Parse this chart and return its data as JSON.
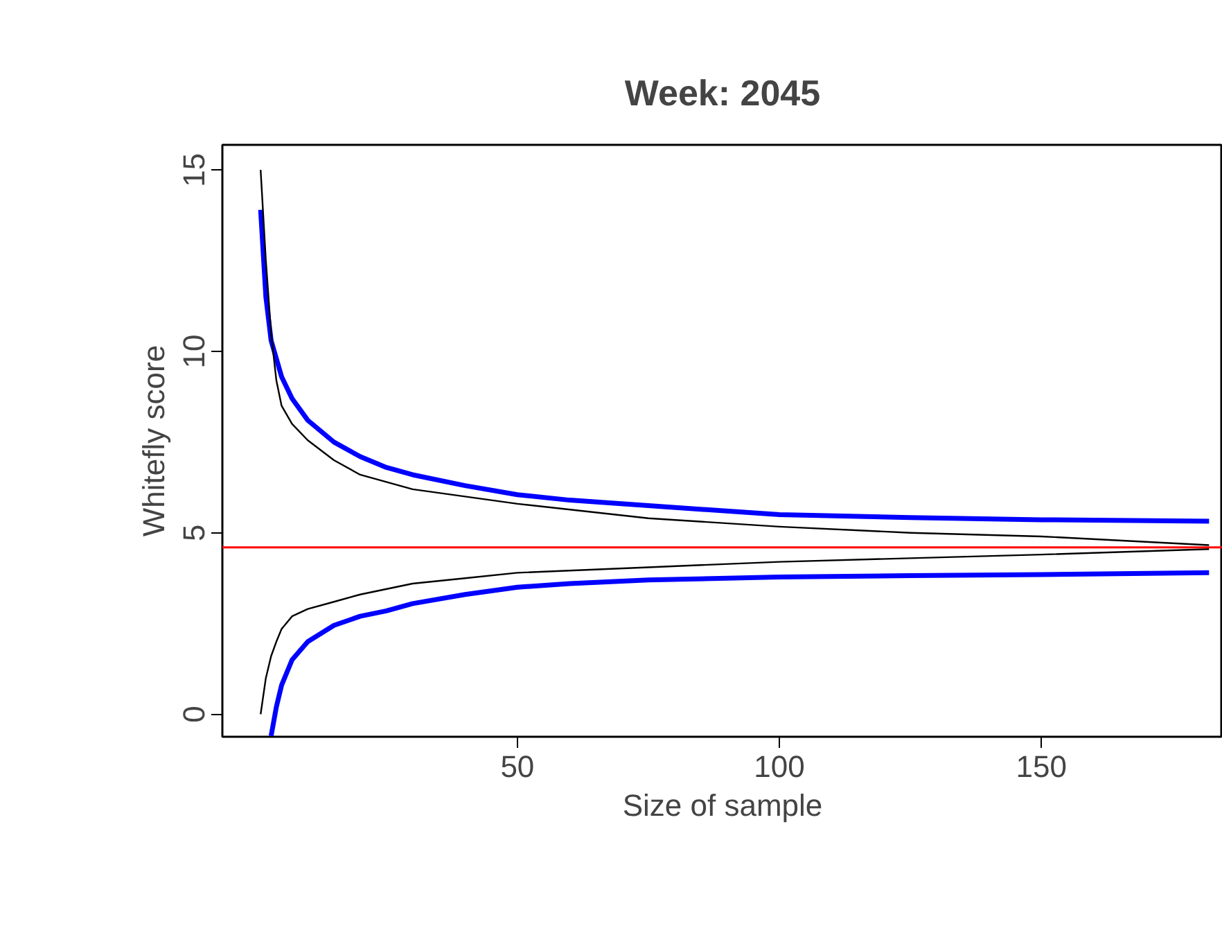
{
  "chart_data": {
    "type": "line",
    "title": "Week: 2045",
    "xlabel": "Size of sample",
    "ylabel": "Whitefly score",
    "xlim": [
      -6.3,
      184.6
    ],
    "ylim": [
      -0.62,
      15.69
    ],
    "xticks": [
      50,
      100,
      150
    ],
    "yticks": [
      0,
      5,
      10,
      15
    ],
    "grid": false,
    "series": [
      {
        "color": "#0000ff",
        "x": [
          1,
          2,
          3,
          5,
          7,
          10,
          15,
          20,
          25,
          30,
          40,
          50,
          60,
          75,
          100,
          125,
          150,
          182
        ],
        "values": [
          13.9,
          11.5,
          10.3,
          9.3,
          8.7,
          8.1,
          7.5,
          7.1,
          6.8,
          6.6,
          6.3,
          6.05,
          5.9,
          5.75,
          5.5,
          5.42,
          5.36,
          5.32
        ]
      },
      {
        "color": "#0000ff",
        "x": [
          3,
          4,
          5,
          7,
          10,
          15,
          20,
          25,
          30,
          40,
          50,
          60,
          75,
          100,
          125,
          150,
          182
        ],
        "values": [
          -0.6,
          0.2,
          0.8,
          1.5,
          2.0,
          2.45,
          2.7,
          2.85,
          3.05,
          3.3,
          3.5,
          3.6,
          3.7,
          3.78,
          3.82,
          3.85,
          3.9
        ]
      },
      {
        "color": "#000000",
        "x": [
          1,
          2,
          3,
          4,
          5,
          7,
          10,
          15,
          20,
          30,
          40,
          50,
          75,
          100,
          125,
          150,
          182
        ],
        "values": [
          15,
          12.5,
          10.5,
          9.2,
          8.5,
          8.0,
          7.55,
          7.0,
          6.6,
          6.2,
          6.0,
          5.8,
          5.4,
          5.17,
          5.0,
          4.9,
          4.66
        ]
      },
      {
        "color": "#000000",
        "x": [
          1,
          2,
          3,
          4,
          5,
          7,
          10,
          15,
          20,
          30,
          40,
          50,
          75,
          100,
          125,
          150,
          182
        ],
        "values": [
          0,
          1.0,
          1.6,
          2.0,
          2.35,
          2.7,
          2.9,
          3.1,
          3.3,
          3.6,
          3.75,
          3.9,
          4.05,
          4.2,
          4.3,
          4.4,
          4.55
        ]
      }
    ],
    "ref_lines": [
      {
        "axis": "y",
        "value": 4.6,
        "color": "#ff0000"
      }
    ]
  }
}
